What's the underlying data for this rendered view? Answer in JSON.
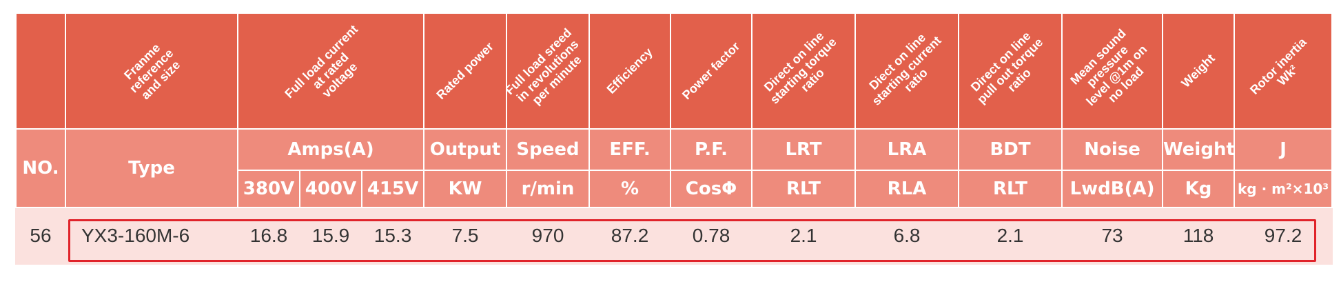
{
  "rotated_headers": [
    "",
    "Franme\nreference\nand size",
    "Full load current\nat rated\nvoltage",
    "Rated power",
    "Full load sreed\nin revolutions\nper minute",
    "Efficiency",
    "Power factor",
    "Direct on line\nstarting torque\nratio",
    "Diect on line\nstarting current\nratio",
    "Direct on line\npull out torque\nratio",
    "Mean sound\npressure\nlevel @1m on\nno load",
    "Weight",
    "Rotor inertia\nWk²"
  ],
  "header_row1": {
    "no": "NO.",
    "type": "Type",
    "amps": "Amps(A)",
    "output": "Output",
    "speed": "Speed",
    "eff": "EFF.",
    "pf": "P.F.",
    "lrt": "LRT",
    "lra": "LRA",
    "bdt": "BDT",
    "noise": "Noise",
    "weight": "Weight",
    "j": "J"
  },
  "header_row2": {
    "v380": "380V",
    "v400": "400V",
    "v415": "415V",
    "kw": "KW",
    "rmin": "r/min",
    "pct": "%",
    "cos": "CosΦ",
    "rlt1": "RLT",
    "rla": "RLA",
    "rlt2": "RLT",
    "lwdb": "LwdB(A)",
    "kg": "Kg",
    "inertia_unit": "kg · m²×10³"
  },
  "rows": [
    {
      "no": "56",
      "type": "YX3-160M-6",
      "a380": "16.8",
      "a400": "15.9",
      "a415": "15.3",
      "kw": "7.5",
      "speed": "970",
      "eff": "87.2",
      "pf": "0.78",
      "lrt": "2.1",
      "lra": "6.8",
      "bdt": "2.1",
      "noise": "73",
      "weight": "118",
      "j": "97.2"
    }
  ],
  "colors": {
    "header_dark": "#e2604b",
    "header_light": "#ee8b7c",
    "row_bg": "#fbe1de",
    "highlight": "#e0232a"
  }
}
